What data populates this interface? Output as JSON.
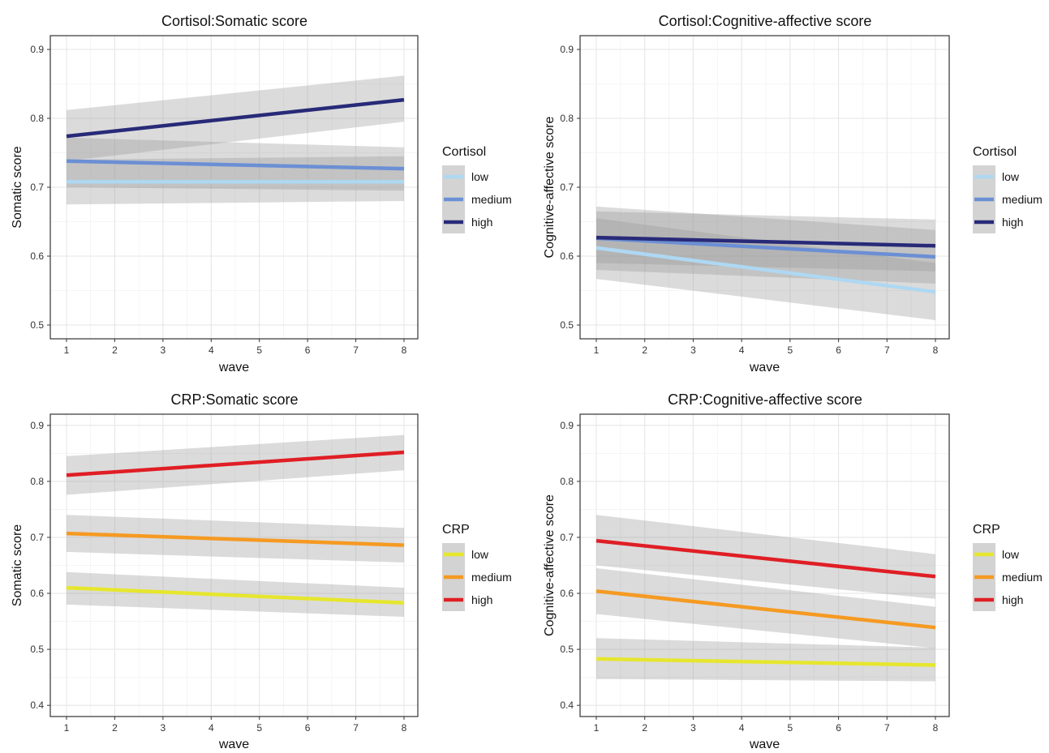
{
  "chart_data": [
    {
      "type": "line",
      "title": "Cortisol:Somatic score",
      "xlabel": "wave",
      "ylabel": "Somatic score",
      "xlim": [
        1,
        8
      ],
      "ylim": [
        0.48,
        0.92
      ],
      "xticks": [
        1,
        2,
        3,
        4,
        5,
        6,
        7,
        8
      ],
      "yticks": [
        0.5,
        0.6,
        0.7,
        0.8,
        0.9
      ],
      "ytick_labels": [
        "0.5",
        "0.6",
        "0.7",
        "0.8",
        "0.9"
      ],
      "grid": true,
      "legend_title": "Cortisol",
      "legend_position": "right",
      "series": [
        {
          "name": "low",
          "color": "#aed8f2",
          "x": [
            1,
            8
          ],
          "y": [
            0.708,
            0.708
          ],
          "ci_lower": [
            0.675,
            0.68
          ],
          "ci_upper": [
            0.74,
            0.745
          ]
        },
        {
          "name": "medium",
          "color": "#6b8fd4",
          "x": [
            1,
            8
          ],
          "y": [
            0.738,
            0.727
          ],
          "ci_lower": [
            0.7,
            0.695
          ],
          "ci_upper": [
            0.772,
            0.758
          ]
        },
        {
          "name": "high",
          "color": "#282a78",
          "x": [
            1,
            8
          ],
          "y": [
            0.774,
            0.827
          ],
          "ci_lower": [
            0.738,
            0.795
          ],
          "ci_upper": [
            0.812,
            0.862
          ]
        }
      ]
    },
    {
      "type": "line",
      "title": "Cortisol:Cognitive-affective score",
      "xlabel": "wave",
      "ylabel": "Cognitive-affective score",
      "xlim": [
        1,
        8
      ],
      "ylim": [
        0.48,
        0.92
      ],
      "xticks": [
        1,
        2,
        3,
        4,
        5,
        6,
        7,
        8
      ],
      "yticks": [
        0.5,
        0.6,
        0.7,
        0.8,
        0.9
      ],
      "ytick_labels": [
        "0.5",
        "0.6",
        "0.7",
        "0.8",
        "0.9"
      ],
      "grid": true,
      "legend_title": "Cortisol",
      "legend_position": "right",
      "series": [
        {
          "name": "low",
          "color": "#aed8f2",
          "x": [
            1,
            8
          ],
          "y": [
            0.612,
            0.548
          ],
          "ci_lower": [
            0.567,
            0.507
          ],
          "ci_upper": [
            0.655,
            0.59
          ]
        },
        {
          "name": "medium",
          "color": "#6b8fd4",
          "x": [
            1,
            8
          ],
          "y": [
            0.626,
            0.599
          ],
          "ci_lower": [
            0.58,
            0.56
          ],
          "ci_upper": [
            0.672,
            0.638
          ]
        },
        {
          "name": "high",
          "color": "#282a78",
          "x": [
            1,
            8
          ],
          "y": [
            0.627,
            0.615
          ],
          "ci_lower": [
            0.59,
            0.578
          ],
          "ci_upper": [
            0.665,
            0.653
          ]
        }
      ]
    },
    {
      "type": "line",
      "title": "CRP:Somatic score",
      "xlabel": "wave",
      "ylabel": "Somatic score",
      "xlim": [
        1,
        8
      ],
      "ylim": [
        0.38,
        0.92
      ],
      "xticks": [
        1,
        2,
        3,
        4,
        5,
        6,
        7,
        8
      ],
      "yticks": [
        0.4,
        0.5,
        0.6,
        0.7,
        0.8,
        0.9
      ],
      "ytick_labels": [
        "0.4",
        "0.5",
        "0.6",
        "0.7",
        "0.8",
        "0.9"
      ],
      "grid": true,
      "legend_title": "CRP",
      "legend_position": "right",
      "series": [
        {
          "name": "low",
          "color": "#e6e62e",
          "x": [
            1,
            8
          ],
          "y": [
            0.61,
            0.583
          ],
          "ci_lower": [
            0.58,
            0.558
          ],
          "ci_upper": [
            0.638,
            0.61
          ]
        },
        {
          "name": "medium",
          "color": "#f59a22",
          "x": [
            1,
            8
          ],
          "y": [
            0.707,
            0.686
          ],
          "ci_lower": [
            0.674,
            0.655
          ],
          "ci_upper": [
            0.74,
            0.717
          ]
        },
        {
          "name": "high",
          "color": "#e01e25",
          "x": [
            1,
            8
          ],
          "y": [
            0.811,
            0.852
          ],
          "ci_lower": [
            0.776,
            0.82
          ],
          "ci_upper": [
            0.845,
            0.883
          ]
        }
      ]
    },
    {
      "type": "line",
      "title": "CRP:Cognitive-affective score",
      "xlabel": "wave",
      "ylabel": "Cognitive-affective score",
      "xlim": [
        1,
        8
      ],
      "ylim": [
        0.38,
        0.92
      ],
      "xticks": [
        1,
        2,
        3,
        4,
        5,
        6,
        7,
        8
      ],
      "yticks": [
        0.4,
        0.5,
        0.6,
        0.7,
        0.8,
        0.9
      ],
      "ytick_labels": [
        "0.4",
        "0.5",
        "0.6",
        "0.7",
        "0.8",
        "0.9"
      ],
      "grid": true,
      "legend_title": "CRP",
      "legend_position": "right",
      "series": [
        {
          "name": "low",
          "color": "#e6e62e",
          "x": [
            1,
            8
          ],
          "y": [
            0.483,
            0.472
          ],
          "ci_lower": [
            0.447,
            0.443
          ],
          "ci_upper": [
            0.52,
            0.503
          ]
        },
        {
          "name": "medium",
          "color": "#f59a22",
          "x": [
            1,
            8
          ],
          "y": [
            0.604,
            0.539
          ],
          "ci_lower": [
            0.563,
            0.502
          ],
          "ci_upper": [
            0.645,
            0.576
          ]
        },
        {
          "name": "high",
          "color": "#e01e25",
          "x": [
            1,
            8
          ],
          "y": [
            0.694,
            0.63
          ],
          "ci_lower": [
            0.65,
            0.59
          ],
          "ci_upper": [
            0.74,
            0.67
          ]
        }
      ]
    }
  ]
}
